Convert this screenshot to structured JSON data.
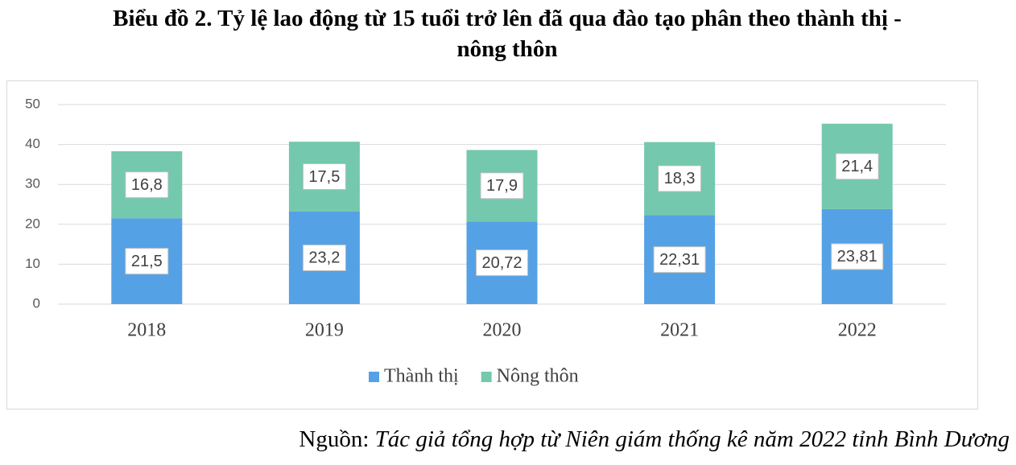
{
  "chart_data": {
    "type": "stacked_bar",
    "title": "Biểu đồ 2. Tỷ lệ lao động từ 15 tuổi trở lên đã qua đào tạo phân theo thành thị - nông thôn",
    "categories": [
      "2018",
      "2019",
      "2020",
      "2021",
      "2022"
    ],
    "series": [
      {
        "name": "Thành thị",
        "color": "#55a1e5",
        "values": [
          21.5,
          23.2,
          20.72,
          22.31,
          23.81
        ],
        "value_labels": [
          "21,5",
          "23,2",
          "20,72",
          "22,31",
          "23,81"
        ]
      },
      {
        "name": "Nông thôn",
        "color": "#74c8ad",
        "values": [
          16.8,
          17.5,
          17.9,
          18.3,
          21.4
        ],
        "value_labels": [
          "16,8",
          "17,5",
          "17,9",
          "18,3",
          "21,4"
        ]
      }
    ],
    "ylim": [
      0,
      50
    ],
    "yticks": [
      0,
      10,
      20,
      30,
      40,
      50
    ],
    "grid": true,
    "legend": "bottom",
    "source_label": "Nguồn:",
    "source": "Tác giả tổng hợp từ Niên giám thống kê năm 2022 tỉnh Bình Dương"
  }
}
